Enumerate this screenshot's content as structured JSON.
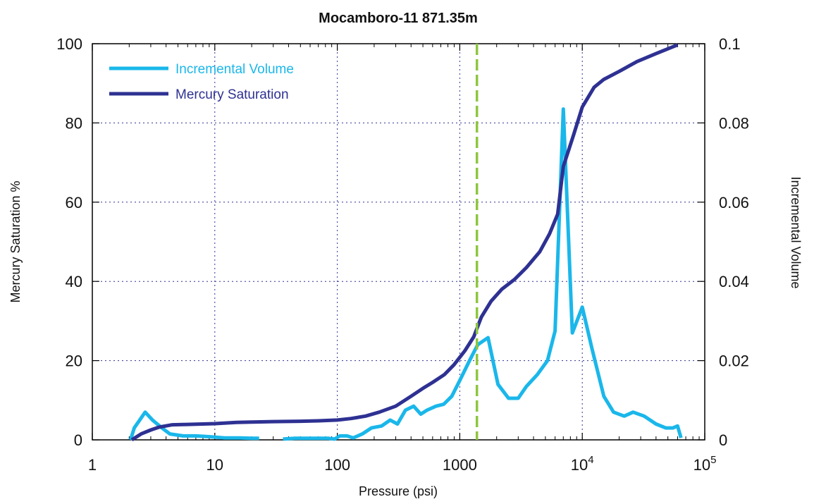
{
  "chart_data": {
    "type": "line",
    "title": "Mocamboro-11 871.35m",
    "xlabel": "Pressure (psi)",
    "ylabel": "Mercury Saturation %",
    "y2label": "Incremental Volume",
    "xscale": "log",
    "xlim": [
      1,
      100000
    ],
    "ylim": [
      0,
      100
    ],
    "y2lim": [
      0,
      0.1
    ],
    "x_ticks": [
      {
        "value": 1,
        "base": "1",
        "exp": ""
      },
      {
        "value": 10,
        "base": "10",
        "exp": ""
      },
      {
        "value": 100,
        "base": "100",
        "exp": ""
      },
      {
        "value": 1000,
        "base": "1000",
        "exp": ""
      },
      {
        "value": 10000,
        "base": "10",
        "exp": "4"
      },
      {
        "value": 100000,
        "base": "10",
        "exp": "5"
      }
    ],
    "y_ticks": [
      "0",
      "20",
      "40",
      "60",
      "80",
      "100"
    ],
    "y2_ticks": [
      "0",
      "0.02",
      "0.04",
      "0.06",
      "0.08",
      "0.1"
    ],
    "grid": true,
    "legend_position": "top-left",
    "vline": {
      "x": 1380,
      "color": "#8dc63f"
    },
    "series": [
      {
        "name": "Incremental Volume",
        "axis": "right",
        "color": "#1ab7ea",
        "segments": [
          [
            [
              2.05,
              0.0
            ],
            [
              2.2,
              0.003
            ],
            [
              2.7,
              0.007
            ],
            [
              3.1,
              0.005
            ],
            [
              3.7,
              0.003
            ],
            [
              4.3,
              0.0015
            ],
            [
              5.5,
              0.001
            ],
            [
              7,
              0.001
            ],
            [
              9,
              0.0008
            ],
            [
              12,
              0.0005
            ],
            [
              16,
              0.0005
            ],
            [
              20,
              0.0004
            ],
            [
              23,
              0.0004
            ]
          ],
          [
            [
              36,
              0.0002
            ],
            [
              45,
              0.0004
            ],
            [
              60,
              0.0004
            ],
            [
              75,
              0.0004
            ],
            [
              85,
              0.0004
            ],
            [
              95,
              0.0002
            ],
            [
              105,
              0.001
            ],
            [
              120,
              0.001
            ],
            [
              135,
              0.0005
            ],
            [
              160,
              0.0015
            ],
            [
              190,
              0.003
            ],
            [
              230,
              0.0035
            ],
            [
              270,
              0.005
            ],
            [
              310,
              0.004
            ],
            [
              360,
              0.0075
            ],
            [
              420,
              0.0085
            ],
            [
              480,
              0.0065
            ],
            [
              540,
              0.0075
            ],
            [
              640,
              0.0085
            ],
            [
              740,
              0.009
            ],
            [
              860,
              0.011
            ],
            [
              1000,
              0.015
            ],
            [
              1200,
              0.02
            ],
            [
              1400,
              0.024
            ],
            [
              1700,
              0.0258
            ],
            [
              2050,
              0.014
            ],
            [
              2500,
              0.0105
            ],
            [
              3000,
              0.0105
            ],
            [
              3500,
              0.0135
            ],
            [
              4300,
              0.0165
            ],
            [
              5200,
              0.02
            ],
            [
              6000,
              0.0275
            ],
            [
              7000,
              0.0835
            ],
            [
              8300,
              0.027
            ],
            [
              10000,
              0.0335
            ],
            [
              12000,
              0.023
            ],
            [
              15000,
              0.011
            ],
            [
              18000,
              0.007
            ],
            [
              22000,
              0.006
            ],
            [
              26000,
              0.007
            ],
            [
              32000,
              0.006
            ],
            [
              40000,
              0.004
            ],
            [
              48000,
              0.003
            ],
            [
              55000,
              0.003
            ],
            [
              60000,
              0.0035
            ],
            [
              64000,
              0.0005
            ]
          ]
        ]
      },
      {
        "name": "Mercury Saturation",
        "axis": "left",
        "color": "#2e3192",
        "segments": [
          [
            [
              2.1,
              0.0
            ],
            [
              2.5,
              1.5
            ],
            [
              3,
              2.5
            ],
            [
              3.5,
              3.2
            ],
            [
              4.5,
              3.8
            ],
            [
              6,
              3.9
            ],
            [
              8,
              4.0
            ],
            [
              10,
              4.1
            ],
            [
              15,
              4.4
            ],
            [
              20,
              4.5
            ],
            [
              30,
              4.6
            ],
            [
              50,
              4.7
            ],
            [
              70,
              4.8
            ],
            [
              100,
              5.0
            ],
            [
              130,
              5.4
            ],
            [
              170,
              6.0
            ],
            [
              220,
              7.0
            ],
            [
              300,
              8.5
            ],
            [
              400,
              11.0
            ],
            [
              500,
              13.0
            ],
            [
              600,
              14.5
            ],
            [
              750,
              16.5
            ],
            [
              900,
              19.0
            ],
            [
              1100,
              22.5
            ],
            [
              1300,
              26.0
            ],
            [
              1500,
              31.0
            ],
            [
              1800,
              35.0
            ],
            [
              2200,
              38.0
            ],
            [
              2800,
              40.5
            ],
            [
              3500,
              43.5
            ],
            [
              4500,
              47.5
            ],
            [
              5400,
              52.0
            ],
            [
              6300,
              57.0
            ],
            [
              7000,
              69.0
            ],
            [
              8500,
              77.0
            ],
            [
              10000,
              84.0
            ],
            [
              12500,
              89.0
            ],
            [
              15000,
              91.0
            ],
            [
              20000,
              93.0
            ],
            [
              28000,
              95.5
            ],
            [
              40000,
              97.5
            ],
            [
              60000,
              99.7
            ]
          ]
        ]
      }
    ]
  }
}
